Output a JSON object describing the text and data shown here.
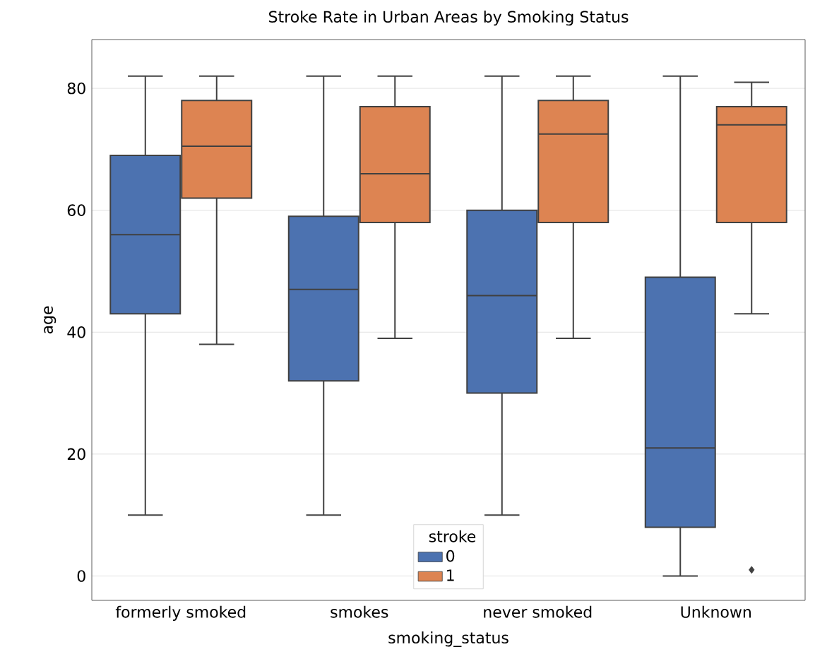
{
  "chart_data": {
    "type": "box",
    "title": "Stroke Rate in Urban Areas by Smoking Status",
    "xlabel": "smoking_status",
    "ylabel": "age",
    "legend_title": "stroke",
    "categories": [
      "formerly smoked",
      "smokes",
      "never smoked",
      "Unknown"
    ],
    "ylim": [
      -4,
      88
    ],
    "yticks": [
      0,
      20,
      40,
      60,
      80
    ],
    "grid": "y",
    "legend": "bottom",
    "series": [
      {
        "name": "0",
        "color": "#4c72b0",
        "boxes": [
          {
            "low": 10,
            "q1": 43,
            "median": 56,
            "q3": 69,
            "high": 82
          },
          {
            "low": 10,
            "q1": 32,
            "median": 47,
            "q3": 59,
            "high": 82
          },
          {
            "low": 10,
            "q1": 30,
            "median": 46,
            "q3": 60,
            "high": 82
          },
          {
            "low": 0,
            "q1": 8,
            "median": 21,
            "q3": 49,
            "high": 82
          }
        ]
      },
      {
        "name": "1",
        "color": "#dd8452",
        "boxes": [
          {
            "low": 38,
            "q1": 62,
            "median": 70.5,
            "q3": 78,
            "high": 82
          },
          {
            "low": 39,
            "q1": 58,
            "median": 66,
            "q3": 77,
            "high": 82
          },
          {
            "low": 39,
            "q1": 58,
            "median": 72.5,
            "q3": 78,
            "high": 82
          },
          {
            "low": 43,
            "q1": 58,
            "median": 74,
            "q3": 77,
            "high": 81,
            "outliers": [
              1
            ]
          }
        ]
      }
    ]
  }
}
